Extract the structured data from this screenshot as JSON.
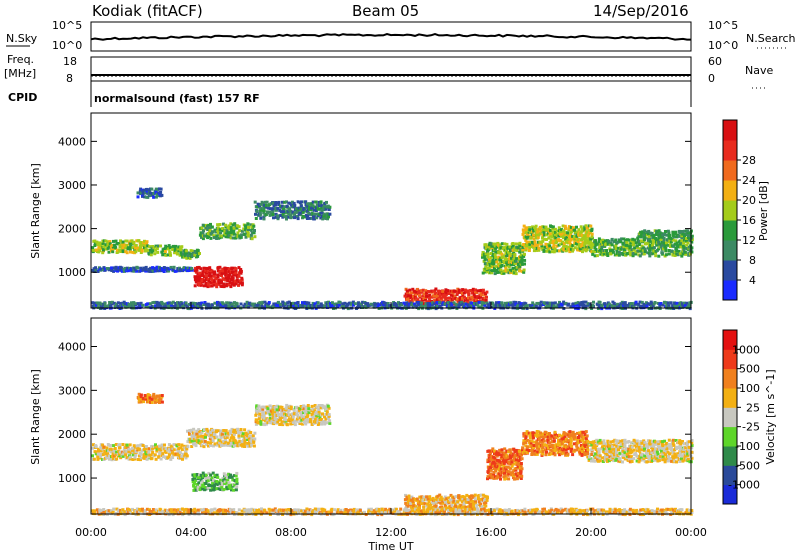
{
  "header": {
    "station": "Kodiak (fitACF)",
    "beam": "Beam 05",
    "date": "14/Sep/2016"
  },
  "strips": {
    "nsky_label": "N.Sky",
    "nsky_ticks": [
      "10^5",
      "10^0"
    ],
    "nsearch_label": "N.Search",
    "nsearch_ticks": [
      "10^5",
      "10^0"
    ],
    "freq_label": "Freq.",
    "freq_unit": "[MHz]",
    "freq_ticks": [
      "18",
      "8"
    ],
    "nave_label": "Nave",
    "nave_ticks": [
      "60",
      "0"
    ],
    "cpid_label": "CPID",
    "cpid_text": "normalsound (fast) 157 RF"
  },
  "chart_data": [
    {
      "type": "heatmap",
      "name": "power",
      "ylabel": "Slant Range [km]",
      "xlabel": "",
      "x_ticks": [
        "00:00",
        "04:00",
        "08:00",
        "12:00",
        "16:00",
        "20:00",
        "00:00"
      ],
      "y_ticks": [
        "1000",
        "2000",
        "3000",
        "4000"
      ],
      "xlim_hours": [
        0,
        24
      ],
      "ylim_km": [
        180,
        4650
      ],
      "colorbar": {
        "label": "Power [dB]",
        "ticks": [
          "4",
          "8",
          "12",
          "16",
          "20",
          "24",
          "28"
        ],
        "colors": [
          "#1a2bff",
          "#2a4aa0",
          "#3c8a64",
          "#2a9a3a",
          "#a4cc1a",
          "#f3b013",
          "#f06a1e",
          "#e82b1e",
          "#d80f12"
        ]
      },
      "features": [
        {
          "t0": 0.0,
          "t1": 2.2,
          "r0": 1480,
          "r1": 1760,
          "level": 0.5
        },
        {
          "t0": 2.2,
          "t1": 3.6,
          "r0": 1420,
          "r1": 1650,
          "level": 0.45
        },
        {
          "t0": 3.6,
          "t1": 4.3,
          "r0": 1350,
          "r1": 1550,
          "level": 0.4
        },
        {
          "t0": 4.3,
          "t1": 6.5,
          "r0": 1800,
          "r1": 2150,
          "level": 0.4
        },
        {
          "t0": 6.5,
          "t1": 9.5,
          "r0": 2250,
          "r1": 2650,
          "level": 0.25
        },
        {
          "t0": 4.1,
          "t1": 6.0,
          "r0": 700,
          "r1": 1150,
          "level": 0.95
        },
        {
          "t0": 0.0,
          "t1": 4.0,
          "r0": 1050,
          "r1": 1150,
          "level": 0.15
        },
        {
          "t0": 12.5,
          "t1": 15.8,
          "r0": 300,
          "r1": 650,
          "level": 0.85
        },
        {
          "t0": 15.6,
          "t1": 17.3,
          "r0": 1000,
          "r1": 1700,
          "level": 0.45
        },
        {
          "t0": 17.2,
          "t1": 20.0,
          "r0": 1500,
          "r1": 2100,
          "level": 0.5
        },
        {
          "t0": 20.0,
          "t1": 24.0,
          "r0": 1400,
          "r1": 1800,
          "level": 0.4
        },
        {
          "t0": 21.8,
          "t1": 24.0,
          "r0": 1800,
          "r1": 2000,
          "level": 0.35
        },
        {
          "t0": 0.0,
          "t1": 24.0,
          "r0": 200,
          "r1": 350,
          "level": 0.2
        },
        {
          "t0": 1.8,
          "t1": 2.8,
          "r0": 2750,
          "r1": 2950,
          "level": 0.2
        }
      ]
    },
    {
      "type": "heatmap",
      "name": "velocity",
      "ylabel": "Slant Range [km]",
      "xlabel": "Time UT",
      "x_ticks": [
        "00:00",
        "04:00",
        "08:00",
        "12:00",
        "16:00",
        "20:00",
        "00:00"
      ],
      "y_ticks": [
        "1000",
        "2000",
        "3000",
        "4000"
      ],
      "xlim_hours": [
        0,
        24
      ],
      "ylim_km": [
        180,
        4650
      ],
      "colorbar": {
        "label": "Velocity [m s^-1]",
        "ticks": [
          "1000",
          "500",
          "100",
          "25",
          "-25",
          "-100",
          "-500",
          "-1000"
        ],
        "colors": [
          "#1a2bd8",
          "#2a4a9a",
          "#2f8a4a",
          "#5ed62a",
          "#c8c8c0",
          "#f3b013",
          "#f0801e",
          "#ee3a1a",
          "#e41010"
        ]
      },
      "features": [
        {
          "t0": 0.0,
          "t1": 3.8,
          "r0": 1450,
          "r1": 1800,
          "level": 0.55
        },
        {
          "t0": 3.8,
          "t1": 6.5,
          "r0": 1750,
          "r1": 2150,
          "level": 0.55
        },
        {
          "t0": 6.5,
          "t1": 9.5,
          "r0": 2250,
          "r1": 2700,
          "level": 0.55
        },
        {
          "t0": 4.0,
          "t1": 5.8,
          "r0": 750,
          "r1": 1150,
          "level": 0.35
        },
        {
          "t0": 12.5,
          "t1": 15.8,
          "r0": 320,
          "r1": 650,
          "level": 0.62
        },
        {
          "t0": 15.8,
          "t1": 17.2,
          "r0": 1000,
          "r1": 1700,
          "level": 0.75
        },
        {
          "t0": 17.2,
          "t1": 19.8,
          "r0": 1550,
          "r1": 2100,
          "level": 0.72
        },
        {
          "t0": 19.8,
          "t1": 24.0,
          "r0": 1400,
          "r1": 1900,
          "level": 0.55
        },
        {
          "t0": 0.0,
          "t1": 24.0,
          "r0": 200,
          "r1": 330,
          "level": 0.6
        },
        {
          "t0": 1.8,
          "t1": 2.8,
          "r0": 2750,
          "r1": 2950,
          "level": 0.7
        }
      ]
    }
  ]
}
